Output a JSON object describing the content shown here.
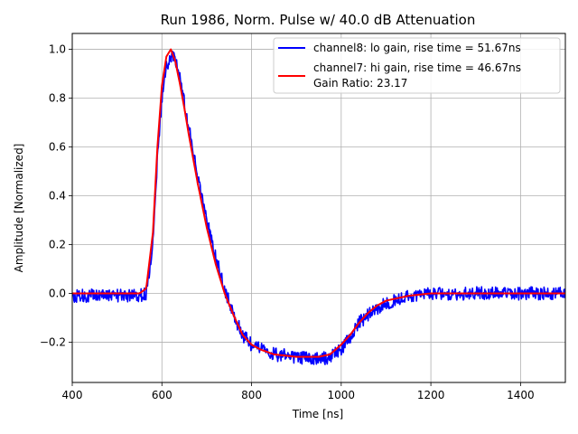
{
  "chart_data": {
    "type": "line",
    "title": "Run 1986, Norm. Pulse w/ 40.0 dB Attenuation",
    "xlabel": "Time [ns]",
    "ylabel": "Amplitude [Normalized]",
    "xlim": [
      400,
      1500
    ],
    "ylim": [
      -0.365,
      1.065
    ],
    "xticks": [
      400,
      600,
      800,
      1000,
      1200,
      1400
    ],
    "yticks": [
      -0.2,
      0.0,
      0.2,
      0.4,
      0.6,
      0.8,
      1.0
    ],
    "ytick_labels": [
      "−0.2",
      "0.0",
      "0.2",
      "0.4",
      "0.6",
      "0.8",
      "1.0"
    ],
    "grid": true,
    "legend": {
      "placement": "upper-right",
      "entries": [
        {
          "label": "channel8: lo gain, rise time = 51.67ns",
          "color": "#0000ff"
        },
        {
          "label": "channel7: hi gain, rise time = 46.67ns",
          "color": "#ff0000"
        }
      ],
      "note": "Gain Ratio: 23.17"
    },
    "series": [
      {
        "name": "channel8: lo gain, rise time = 51.67ns",
        "color": "#0000ff",
        "noisy": true,
        "x": [
          400,
          500,
          550,
          565,
          580,
          590,
          600,
          610,
          620,
          630,
          640,
          650,
          660,
          680,
          700,
          720,
          740,
          760,
          780,
          800,
          820,
          850,
          900,
          950,
          975,
          1000,
          1020,
          1040,
          1060,
          1080,
          1100,
          1150,
          1200,
          1300,
          1400,
          1500
        ],
        "y": [
          -0.01,
          -0.01,
          -0.01,
          0.0,
          0.2,
          0.55,
          0.8,
          0.93,
          0.97,
          0.96,
          0.88,
          0.78,
          0.68,
          0.47,
          0.3,
          0.15,
          0.02,
          -0.09,
          -0.17,
          -0.21,
          -0.23,
          -0.25,
          -0.26,
          -0.27,
          -0.26,
          -0.23,
          -0.18,
          -0.12,
          -0.09,
          -0.06,
          -0.04,
          -0.01,
          0.0,
          0.0,
          0.0,
          0.0
        ]
      },
      {
        "name": "channel7: hi gain, rise time = 46.67ns",
        "color": "#ff0000",
        "noisy": false,
        "x": [
          400,
          500,
          550,
          565,
          580,
          590,
          600,
          610,
          620,
          630,
          640,
          650,
          660,
          680,
          700,
          720,
          740,
          760,
          780,
          800,
          820,
          850,
          900,
          950,
          975,
          1000,
          1020,
          1040,
          1060,
          1080,
          1100,
          1150,
          1200,
          1300,
          1400,
          1500
        ],
        "y": [
          0.0,
          0.0,
          0.0,
          0.02,
          0.25,
          0.6,
          0.85,
          0.97,
          1.0,
          0.95,
          0.86,
          0.76,
          0.65,
          0.45,
          0.27,
          0.12,
          0.0,
          -0.09,
          -0.17,
          -0.21,
          -0.23,
          -0.25,
          -0.26,
          -0.26,
          -0.25,
          -0.21,
          -0.17,
          -0.12,
          -0.08,
          -0.05,
          -0.03,
          -0.01,
          0.0,
          0.0,
          0.0,
          0.0
        ]
      }
    ]
  }
}
